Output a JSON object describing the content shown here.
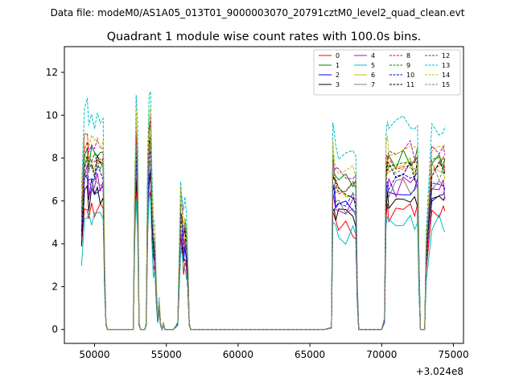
{
  "chart_data": {
    "type": "line",
    "suptitle": "Data file: modeM0/AS1A05_013T01_9000003070_20791cztM0_level2_quad_clean.evt",
    "title": "Quadrant 1 module wise count rates with 100.0s bins.",
    "xlabel": "",
    "ylabel": "",
    "x_offset_label": "+3.024e8",
    "xlim": [
      47900,
      75700
    ],
    "ylim": [
      -0.65,
      13.2
    ],
    "xticks": [
      50000,
      55000,
      60000,
      65000,
      70000,
      75000
    ],
    "xtick_labels": [
      "50000",
      "55000",
      "60000",
      "65000",
      "70000",
      "75000"
    ],
    "yticks": [
      0,
      2,
      4,
      6,
      8,
      10,
      12
    ],
    "ytick_labels": [
      "0",
      "2",
      "4",
      "6",
      "8",
      "10",
      "12"
    ],
    "legend_position": "upper right",
    "profile_x": [
      49100,
      49300,
      49500,
      49600,
      49800,
      50000,
      50200,
      50400,
      50600,
      50700,
      50800,
      50900,
      51000,
      51100,
      51200,
      51500,
      52000,
      52500,
      52700,
      52800,
      52900,
      53000,
      53100,
      53200,
      53300,
      53400,
      53500,
      53600,
      53700,
      53800,
      53900,
      54000,
      54100,
      54200,
      54300,
      54400,
      54500,
      54600,
      54700,
      54800,
      54900,
      55000,
      55100,
      55200,
      55500,
      55800,
      56000,
      56100,
      56200,
      56300,
      56400,
      56500,
      56600,
      56700,
      56800,
      56900,
      57000,
      57500,
      60000,
      63000,
      66000,
      66500,
      66600,
      66700,
      66800,
      67000,
      67500,
      68000,
      68200,
      68300,
      68400,
      68500,
      68600,
      68700,
      68800,
      69000,
      69500,
      70000,
      70200,
      70300,
      70400,
      70500,
      71000,
      71500,
      72000,
      72300,
      72500,
      72600,
      72700,
      72800,
      72900,
      73000,
      73100,
      73500,
      74000,
      74300,
      74400
    ],
    "profile_y": [
      0.55,
      0.88,
      0.9,
      0.82,
      0.86,
      0.84,
      0.87,
      0.85,
      0.88,
      0.3,
      0.03,
      0,
      0,
      0,
      0,
      0,
      0,
      0,
      0,
      0.6,
      0.95,
      0.8,
      0.03,
      0,
      0,
      0,
      0,
      0.03,
      0.7,
      0.95,
      0.98,
      0.62,
      0.45,
      0.42,
      0.2,
      0.05,
      0.13,
      0.03,
      0,
      0.03,
      0,
      0,
      0,
      0,
      0,
      0.03,
      0.6,
      0.55,
      0.45,
      0.5,
      0.45,
      0.3,
      0.03,
      0,
      0,
      0,
      0,
      0,
      0,
      0,
      0,
      0.01,
      0.82,
      0.78,
      0.74,
      0.72,
      0.72,
      0.72,
      0.7,
      0.2,
      0,
      0,
      0,
      0,
      0,
      0,
      0,
      0,
      0.05,
      0.8,
      0.84,
      0.82,
      0.82,
      0.83,
      0.84,
      0.82,
      0.85,
      0.3,
      0,
      0,
      0,
      0,
      0.4,
      0.82,
      0.82,
      0.82,
      0.8
    ],
    "series": [
      {
        "name": "0",
        "color": "#ff0000",
        "linestyle": "solid",
        "peak": 6.6,
        "seed": 11
      },
      {
        "name": "1",
        "color": "#008000",
        "linestyle": "solid",
        "peak": 9.6,
        "seed": 12
      },
      {
        "name": "2",
        "color": "#0000ff",
        "linestyle": "solid",
        "peak": 7.8,
        "seed": 13
      },
      {
        "name": "3",
        "color": "#000000",
        "linestyle": "solid",
        "peak": 7.2,
        "seed": 14
      },
      {
        "name": "4",
        "color": "#bf00bf",
        "linestyle": "solid",
        "peak": 8.1,
        "seed": 15
      },
      {
        "name": "5",
        "color": "#00bfbf",
        "linestyle": "solid",
        "peak": 6.1,
        "seed": 16
      },
      {
        "name": "6",
        "color": "#bfbf00",
        "linestyle": "solid",
        "peak": 9.1,
        "seed": 17
      },
      {
        "name": "7",
        "color": "#808080",
        "linestyle": "solid",
        "peak": 8.0,
        "seed": 18
      },
      {
        "name": "8",
        "color": "#ff0000",
        "linestyle": "dashed",
        "peak": 9.4,
        "seed": 19
      },
      {
        "name": "9",
        "color": "#008000",
        "linestyle": "dashed",
        "peak": 9.3,
        "seed": 20
      },
      {
        "name": "10",
        "color": "#0000ff",
        "linestyle": "dashed",
        "peak": 8.3,
        "seed": 21
      },
      {
        "name": "11",
        "color": "#000000",
        "linestyle": "dashed",
        "peak": 9.0,
        "seed": 22
      },
      {
        "name": "12",
        "color": "#bf00bf",
        "linestyle": "dashed",
        "peak": 10.0,
        "seed": 23
      },
      {
        "name": "13",
        "color": "#00bfbf",
        "linestyle": "dashed",
        "peak": 11.6,
        "seed": 24
      },
      {
        "name": "14",
        "color": "#bfbf00",
        "linestyle": "dashed",
        "peak": 10.4,
        "seed": 25
      },
      {
        "name": "15",
        "color": "#808080",
        "linestyle": "dashed",
        "peak": 9.0,
        "seed": 26
      }
    ]
  }
}
